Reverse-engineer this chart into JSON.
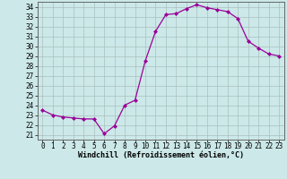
{
  "x": [
    0,
    1,
    2,
    3,
    4,
    5,
    6,
    7,
    8,
    9,
    10,
    11,
    12,
    13,
    14,
    15,
    16,
    17,
    18,
    19,
    20,
    21,
    22,
    23
  ],
  "y": [
    23.5,
    23.0,
    22.8,
    22.7,
    22.6,
    22.6,
    21.1,
    21.9,
    24.0,
    24.5,
    28.5,
    31.5,
    33.2,
    33.3,
    33.8,
    34.2,
    33.9,
    33.7,
    33.5,
    32.8,
    30.5,
    29.8,
    29.2,
    29.0
  ],
  "line_color": "#990099",
  "marker": "D",
  "marker_size": 2.0,
  "bg_color": "#cce8e8",
  "grid_color": "#aabfbf",
  "ylabel_ticks": [
    21,
    22,
    23,
    24,
    25,
    26,
    27,
    28,
    29,
    30,
    31,
    32,
    33,
    34
  ],
  "xlabel": "Windchill (Refroidissement éolien,°C)",
  "xlim": [
    -0.5,
    23.5
  ],
  "ylim": [
    20.5,
    34.5
  ],
  "xtick_labels": [
    "0",
    "1",
    "2",
    "3",
    "4",
    "5",
    "6",
    "7",
    "8",
    "9",
    "10",
    "11",
    "12",
    "13",
    "14",
    "15",
    "16",
    "17",
    "18",
    "19",
    "20",
    "21",
    "22",
    "23"
  ],
  "tick_fontsize": 5.5,
  "xlabel_fontsize": 6.0,
  "line_width": 0.9
}
